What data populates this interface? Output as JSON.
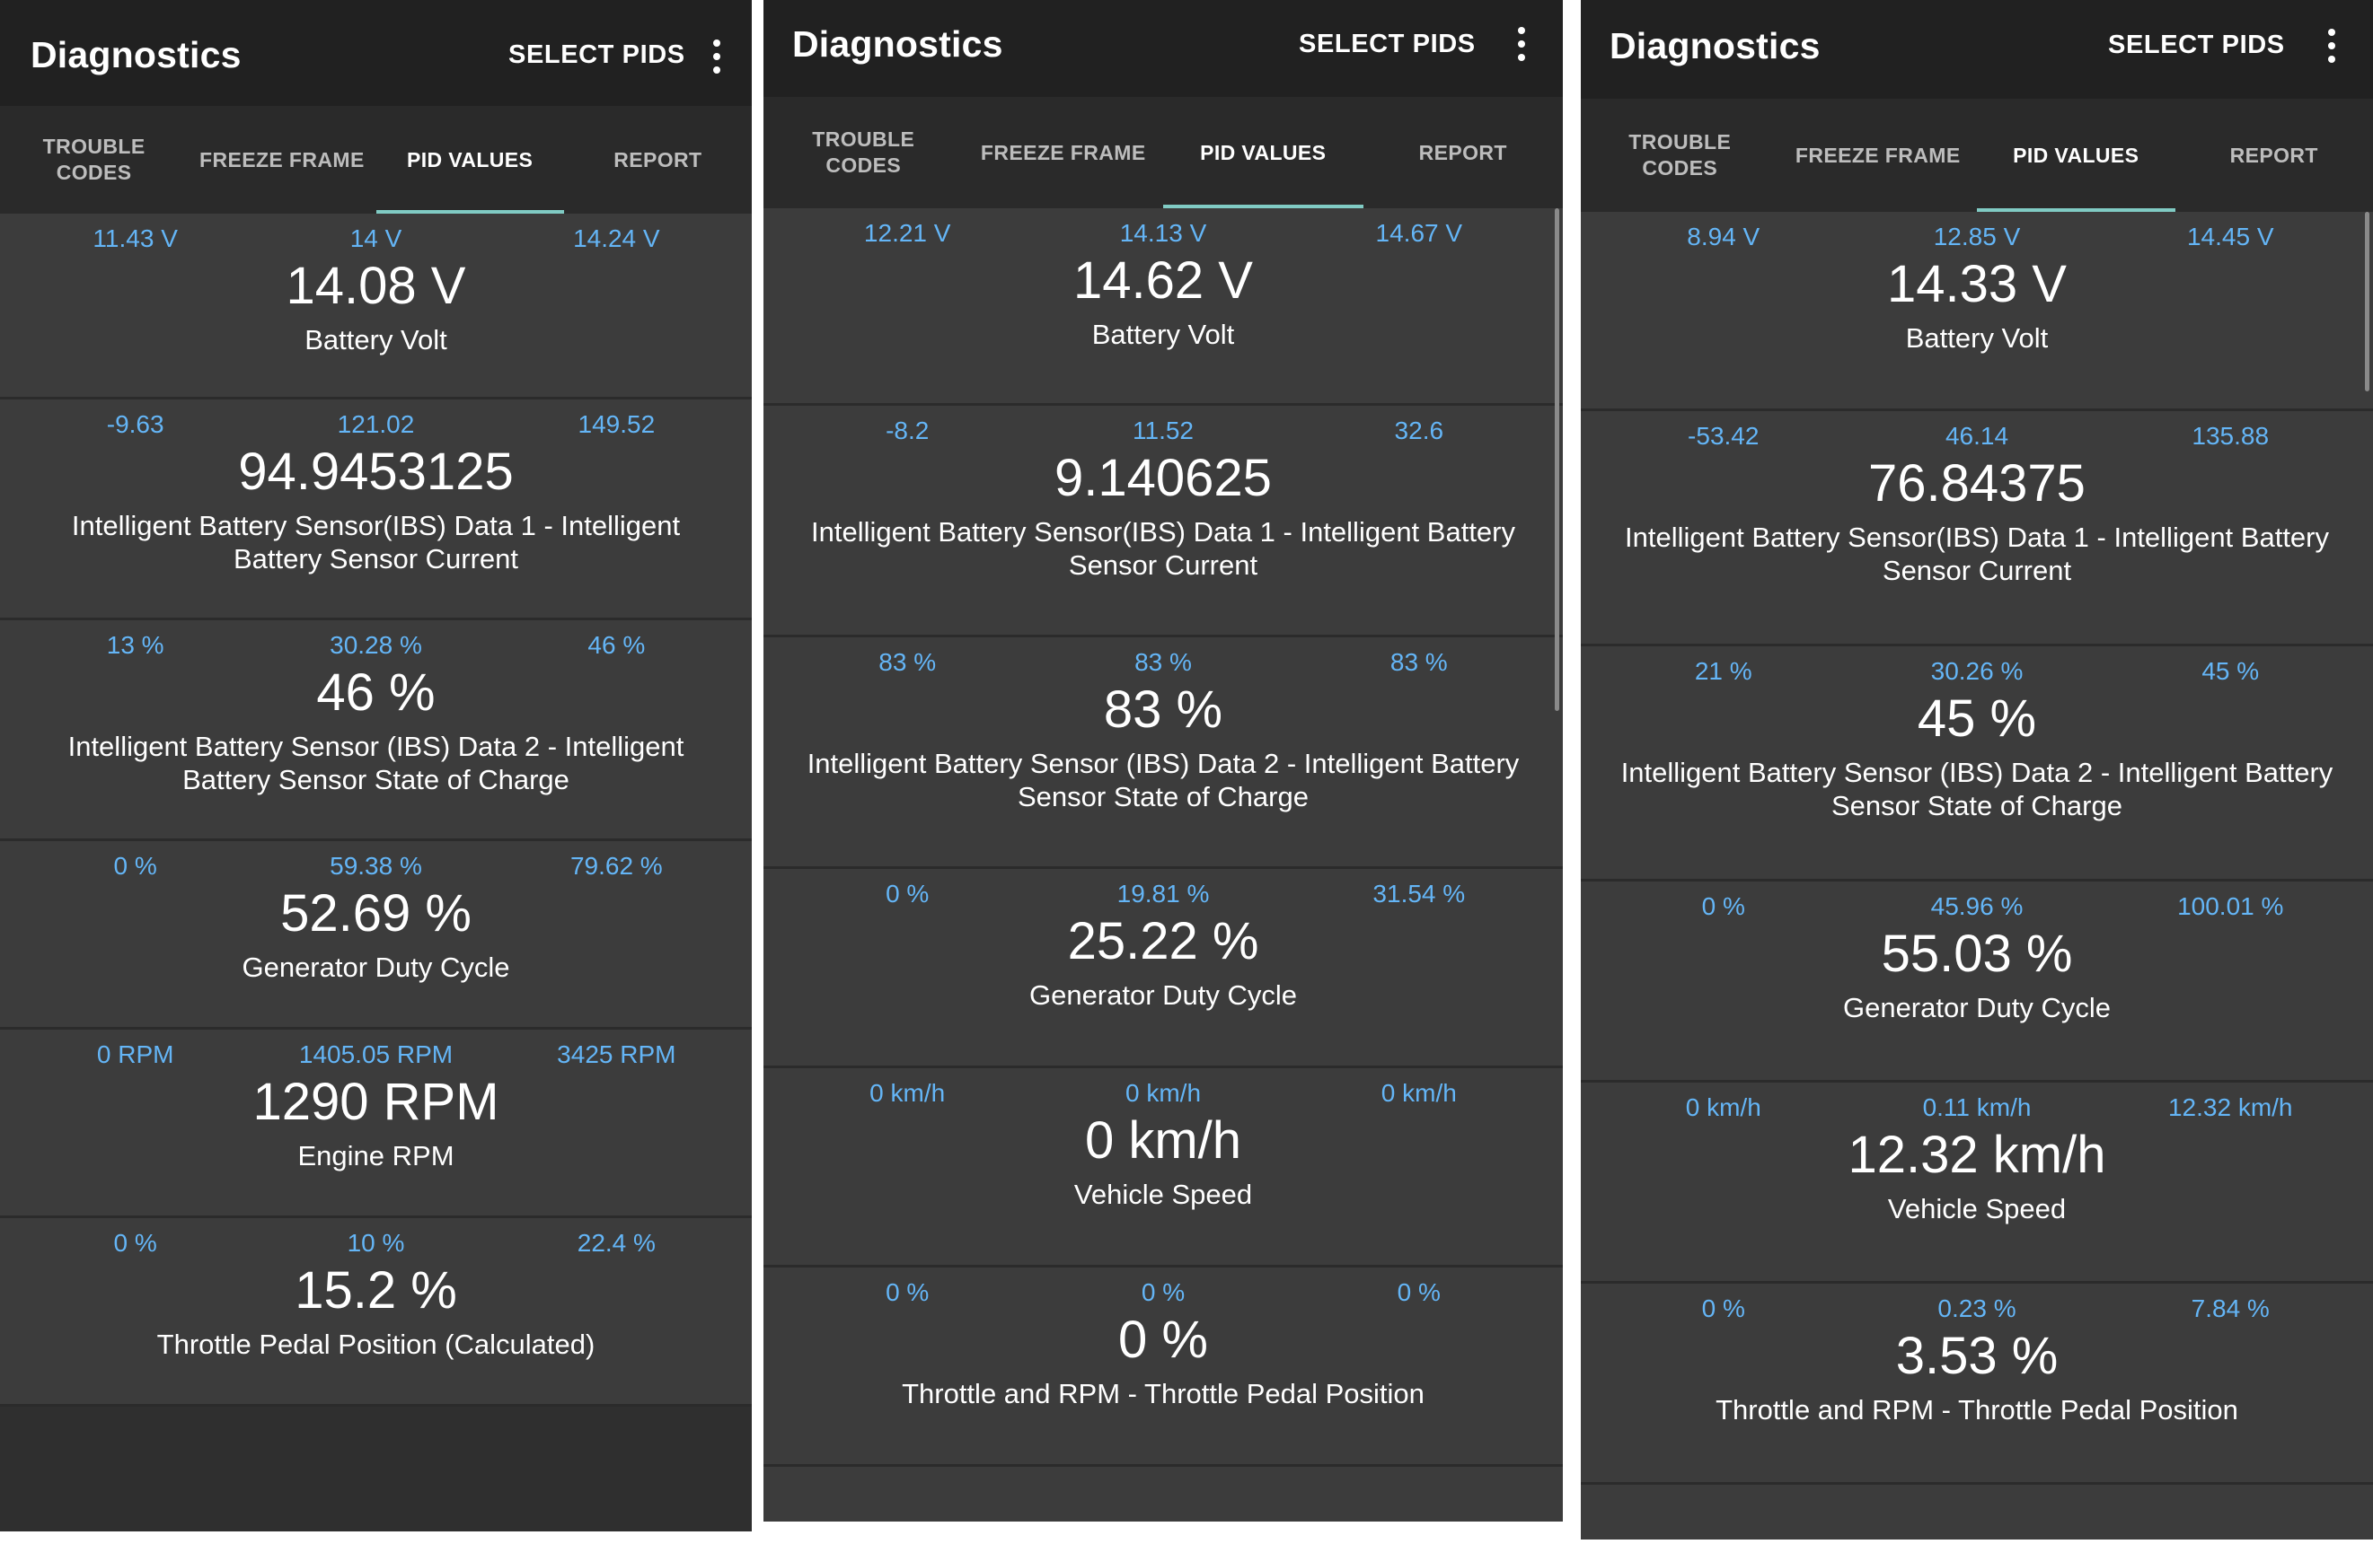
{
  "screens": [
    {
      "app_bar": {
        "title": "Diagnostics",
        "action": "SELECT PIDS"
      },
      "tabs": [
        {
          "label": "TROUBLE\nCODES"
        },
        {
          "label": "FREEZE FRAME"
        },
        {
          "label": "PID VALUES"
        },
        {
          "label": "REPORT"
        }
      ],
      "active_tab": 2,
      "pids": [
        {
          "min": "11.43 V",
          "avg": "14 V",
          "max": "14.24 V",
          "value": "14.08 V",
          "name": "Battery Volt"
        },
        {
          "min": "-9.63",
          "avg": "121.02",
          "max": "149.52",
          "value": "94.9453125",
          "name": "Intelligent Battery Sensor(IBS) Data 1 - Intelligent Battery Sensor Current"
        },
        {
          "min": "13 %",
          "avg": "30.28 %",
          "max": "46 %",
          "value": "46 %",
          "name": "Intelligent Battery Sensor (IBS) Data 2 - Intelligent Battery Sensor State of Charge"
        },
        {
          "min": "0 %",
          "avg": "59.38 %",
          "max": "79.62 %",
          "value": "52.69 %",
          "name": "Generator Duty Cycle"
        },
        {
          "min": "0 RPM",
          "avg": "1405.05 RPM",
          "max": "3425 RPM",
          "value": "1290 RPM",
          "name": "Engine RPM"
        },
        {
          "min": "0 %",
          "avg": "10 %",
          "max": "22.4 %",
          "value": "15.2 %",
          "name": "Throttle Pedal Position (Calculated)"
        }
      ]
    },
    {
      "app_bar": {
        "title": "Diagnostics",
        "action": "SELECT PIDS"
      },
      "tabs": [
        {
          "label": "TROUBLE\nCODES"
        },
        {
          "label": "FREEZE FRAME"
        },
        {
          "label": "PID VALUES"
        },
        {
          "label": "REPORT"
        }
      ],
      "active_tab": 2,
      "pids": [
        {
          "min": "12.21 V",
          "avg": "14.13 V",
          "max": "14.67 V",
          "value": "14.62 V",
          "name": "Battery Volt"
        },
        {
          "min": "-8.2",
          "avg": "11.52",
          "max": "32.6",
          "value": "9.140625",
          "name": "Intelligent Battery Sensor(IBS) Data 1 - Intelligent Battery Sensor Current"
        },
        {
          "min": "83 %",
          "avg": "83 %",
          "max": "83 %",
          "value": "83 %",
          "name": "Intelligent Battery Sensor (IBS) Data 2 - Intelligent Battery Sensor State of Charge"
        },
        {
          "min": "0 %",
          "avg": "19.81 %",
          "max": "31.54 %",
          "value": "25.22 %",
          "name": "Generator Duty Cycle"
        },
        {
          "min": "0 km/h",
          "avg": "0 km/h",
          "max": "0 km/h",
          "value": "0 km/h",
          "name": "Vehicle Speed"
        },
        {
          "min": "0 %",
          "avg": "0 %",
          "max": "0 %",
          "value": "0 %",
          "name": "Throttle and RPM - Throttle Pedal Position"
        }
      ]
    },
    {
      "app_bar": {
        "title": "Diagnostics",
        "action": "SELECT PIDS"
      },
      "tabs": [
        {
          "label": "TROUBLE\nCODES"
        },
        {
          "label": "FREEZE FRAME"
        },
        {
          "label": "PID VALUES"
        },
        {
          "label": "REPORT"
        }
      ],
      "active_tab": 2,
      "pids": [
        {
          "min": "8.94 V",
          "avg": "12.85 V",
          "max": "14.45 V",
          "value": "14.33 V",
          "name": "Battery Volt"
        },
        {
          "min": "-53.42",
          "avg": "46.14",
          "max": "135.88",
          "value": "76.84375",
          "name": "Intelligent Battery Sensor(IBS) Data 1 - Intelligent Battery Sensor Current"
        },
        {
          "min": "21 %",
          "avg": "30.26 %",
          "max": "45 %",
          "value": "45 %",
          "name": "Intelligent Battery Sensor (IBS) Data 2 - Intelligent Battery Sensor State of Charge"
        },
        {
          "min": "0 %",
          "avg": "45.96 %",
          "max": "100.01 %",
          "value": "55.03 %",
          "name": "Generator Duty Cycle"
        },
        {
          "min": "0 km/h",
          "avg": "0.11 km/h",
          "max": "12.32 km/h",
          "value": "12.32 km/h",
          "name": "Vehicle Speed"
        },
        {
          "min": "0 %",
          "avg": "0.23 %",
          "max": "7.84 %",
          "value": "3.53 %",
          "name": "Throttle and RPM - Throttle Pedal Position"
        }
      ]
    }
  ],
  "colors": {
    "app_bar": "#212121",
    "tab_bar": "#2a2a2a",
    "card": "#3c3c3c",
    "stat_text": "#64b5f6",
    "tab_indicator": "#80cbc4",
    "primary_text": "#ffffff"
  },
  "icons": {
    "overflow_menu": "more-vert-icon"
  }
}
